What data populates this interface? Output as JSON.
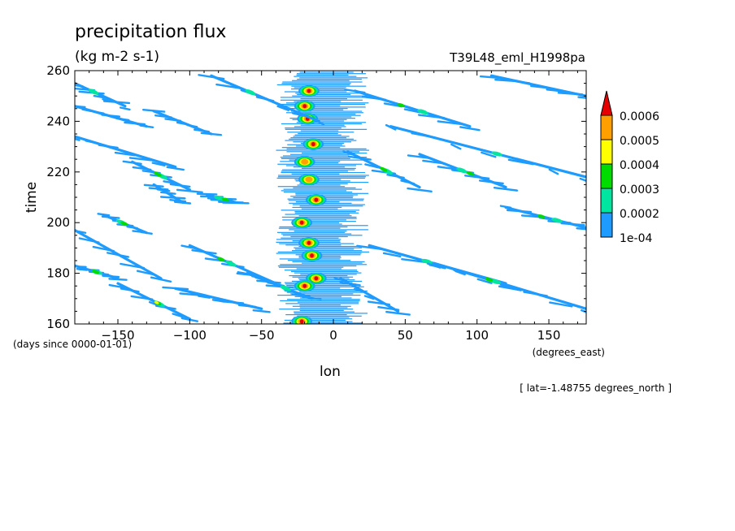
{
  "chart_data": {
    "type": "heatmap",
    "title": "precipitation flux",
    "subtitle": "(kg m-2 s-1)",
    "run_label": "T39L48_eml_H1998pa",
    "xlabel": "lon",
    "ylabel": "time",
    "x_units": "(degrees_east)",
    "y_units": "(days since 0000-01-01)",
    "footnote": "[ lat=-1.48755 degrees_north ]",
    "xlim": [
      -180,
      176
    ],
    "ylim": [
      160,
      260
    ],
    "x_ticks": [
      -150,
      -100,
      -50,
      0,
      50,
      100,
      150
    ],
    "y_ticks": [
      160,
      180,
      200,
      220,
      240,
      260
    ],
    "grid": false,
    "colorbar": {
      "placement": "right",
      "labels": [
        "1e-04",
        "0.0002",
        "0.0003",
        "0.0004",
        "0.0005",
        "0.0006"
      ],
      "colors": [
        "#1e9bff",
        "#00e6a0",
        "#00dc00",
        "#ffff00",
        "#ffa000",
        "#e60000"
      ]
    },
    "features": [
      {
        "kind": "convective_center",
        "lon_range": [
          -40,
          25
        ],
        "time_range": [
          160,
          260
        ],
        "level": 1
      },
      {
        "kind": "cluster",
        "lon": -17,
        "time": 252,
        "level": 6
      },
      {
        "kind": "cluster",
        "lon": -20,
        "time": 246,
        "level": 6
      },
      {
        "kind": "cluster",
        "lon": -18,
        "time": 241,
        "level": 6
      },
      {
        "kind": "cluster",
        "lon": -14,
        "time": 231,
        "level": 6
      },
      {
        "kind": "cluster",
        "lon": -20,
        "time": 224,
        "level": 5
      },
      {
        "kind": "cluster",
        "lon": -17,
        "time": 217,
        "level": 5
      },
      {
        "kind": "cluster",
        "lon": -12,
        "time": 209,
        "level": 6
      },
      {
        "kind": "cluster",
        "lon": -22,
        "time": 200,
        "level": 6
      },
      {
        "kind": "cluster",
        "lon": -17,
        "time": 192,
        "level": 6
      },
      {
        "kind": "cluster",
        "lon": -15,
        "time": 187,
        "level": 6
      },
      {
        "kind": "cluster",
        "lon": -12,
        "time": 178,
        "level": 6
      },
      {
        "kind": "cluster",
        "lon": -20,
        "time": 175,
        "level": 6
      },
      {
        "kind": "cluster",
        "lon": -22,
        "time": 161,
        "level": 6
      },
      {
        "kind": "band",
        "lon": [
          -180,
          -145
        ],
        "time": [
          255,
          246
        ],
        "level": 2
      },
      {
        "kind": "band",
        "lon": [
          -85,
          -10
        ],
        "time": [
          258,
          240
        ],
        "level": 2
      },
      {
        "kind": "band",
        "lon": [
          15,
          95
        ],
        "time": [
          252,
          238
        ],
        "level": 3
      },
      {
        "kind": "band",
        "lon": [
          -125,
          -85
        ],
        "time": [
          244,
          235
        ],
        "level": 1
      },
      {
        "kind": "band",
        "lon": [
          40,
          176
        ],
        "time": [
          238,
          218
        ],
        "level": 2
      },
      {
        "kind": "band",
        "lon": [
          10,
          60
        ],
        "time": [
          228,
          214
        ],
        "level": 3
      },
      {
        "kind": "band",
        "lon": [
          60,
          120
        ],
        "time": [
          227,
          214
        ],
        "level": 3
      },
      {
        "kind": "band",
        "lon": [
          -180,
          -110
        ],
        "time": [
          234,
          222
        ],
        "level": 1
      },
      {
        "kind": "band",
        "lon": [
          -140,
          -100
        ],
        "time": [
          224,
          213
        ],
        "level": 3
      },
      {
        "kind": "band",
        "lon": [
          -125,
          -105
        ],
        "time": [
          215,
          208
        ],
        "level": 1
      },
      {
        "kind": "band",
        "lon": [
          -160,
          -130
        ],
        "time": [
          203,
          196
        ],
        "level": 3
      },
      {
        "kind": "band",
        "lon": [
          -88,
          -68
        ],
        "time": [
          211,
          208
        ],
        "level": 3
      },
      {
        "kind": "band",
        "lon": [
          120,
          176
        ],
        "time": [
          206,
          198
        ],
        "level": 3
      },
      {
        "kind": "band",
        "lon": [
          -180,
          -120
        ],
        "time": [
          197,
          178
        ],
        "level": 1
      },
      {
        "kind": "band",
        "lon": [
          -100,
          -40
        ],
        "time": [
          191,
          176
        ],
        "level": 3
      },
      {
        "kind": "band",
        "lon": [
          -180,
          -150
        ],
        "time": [
          183,
          178
        ],
        "level": 3
      },
      {
        "kind": "band",
        "lon": [
          25,
          120
        ],
        "time": [
          191,
          176
        ],
        "level": 2
      },
      {
        "kind": "band",
        "lon": [
          70,
          176
        ],
        "time": [
          184,
          166
        ],
        "level": 3
      },
      {
        "kind": "band",
        "lon": [
          -150,
          -100
        ],
        "time": [
          176,
          162
        ],
        "level": 4
      },
      {
        "kind": "band",
        "lon": [
          -110,
          -50
        ],
        "time": [
          174,
          166
        ],
        "level": 1
      },
      {
        "kind": "band",
        "lon": [
          -60,
          -15
        ],
        "time": [
          180,
          170
        ],
        "level": 2
      },
      {
        "kind": "band",
        "lon": [
          5,
          45
        ],
        "time": [
          178,
          165
        ],
        "level": 1
      },
      {
        "kind": "band",
        "lon": [
          -180,
          -130
        ],
        "time": [
          246,
          238
        ],
        "level": 1
      },
      {
        "kind": "band",
        "lon": [
          110,
          176
        ],
        "time": [
          258,
          250
        ],
        "level": 1
      }
    ]
  }
}
